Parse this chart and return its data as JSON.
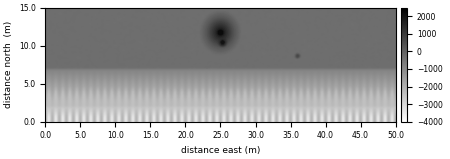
{
  "xlim": [
    0.0,
    50.0
  ],
  "ylim": [
    0.0,
    15.0
  ],
  "xlabel": "distance east (m)",
  "ylabel": "distance north  (m)",
  "xticks": [
    0.0,
    5.0,
    10.0,
    15.0,
    20.0,
    25.0,
    30.0,
    35.0,
    40.0,
    45.0,
    50.0
  ],
  "yticks": [
    0.0,
    5.0,
    10.0,
    15.0
  ],
  "cbar_ticks": [
    2000,
    1000,
    0,
    -1000,
    -2000,
    -3000,
    -4000
  ],
  "vmin": -4000,
  "vmax": 2500,
  "nx": 500,
  "ny": 200,
  "spike_period": 1.0,
  "spike_peak_y": 4.5,
  "spike_trough_y": 2.5,
  "upper_bg_val": -300,
  "mid_zone_val": -800,
  "dark_spike_val": -2500,
  "bright_base_val": -4000,
  "blob1_x": 24.5,
  "blob1_y": 13.0,
  "blob1_r": 1.3,
  "blob1_val": 2200,
  "blob2_x": 25.2,
  "blob2_y": 10.8,
  "blob2_r": 0.8,
  "blob2_val": 2000,
  "blob3_x": 25.0,
  "blob3_y": 11.8,
  "blob3_r": 2.2,
  "blob3_val": 1400,
  "dot_x": 36.0,
  "dot_y": 8.7,
  "dot_r": 0.3,
  "dot_val": 800
}
